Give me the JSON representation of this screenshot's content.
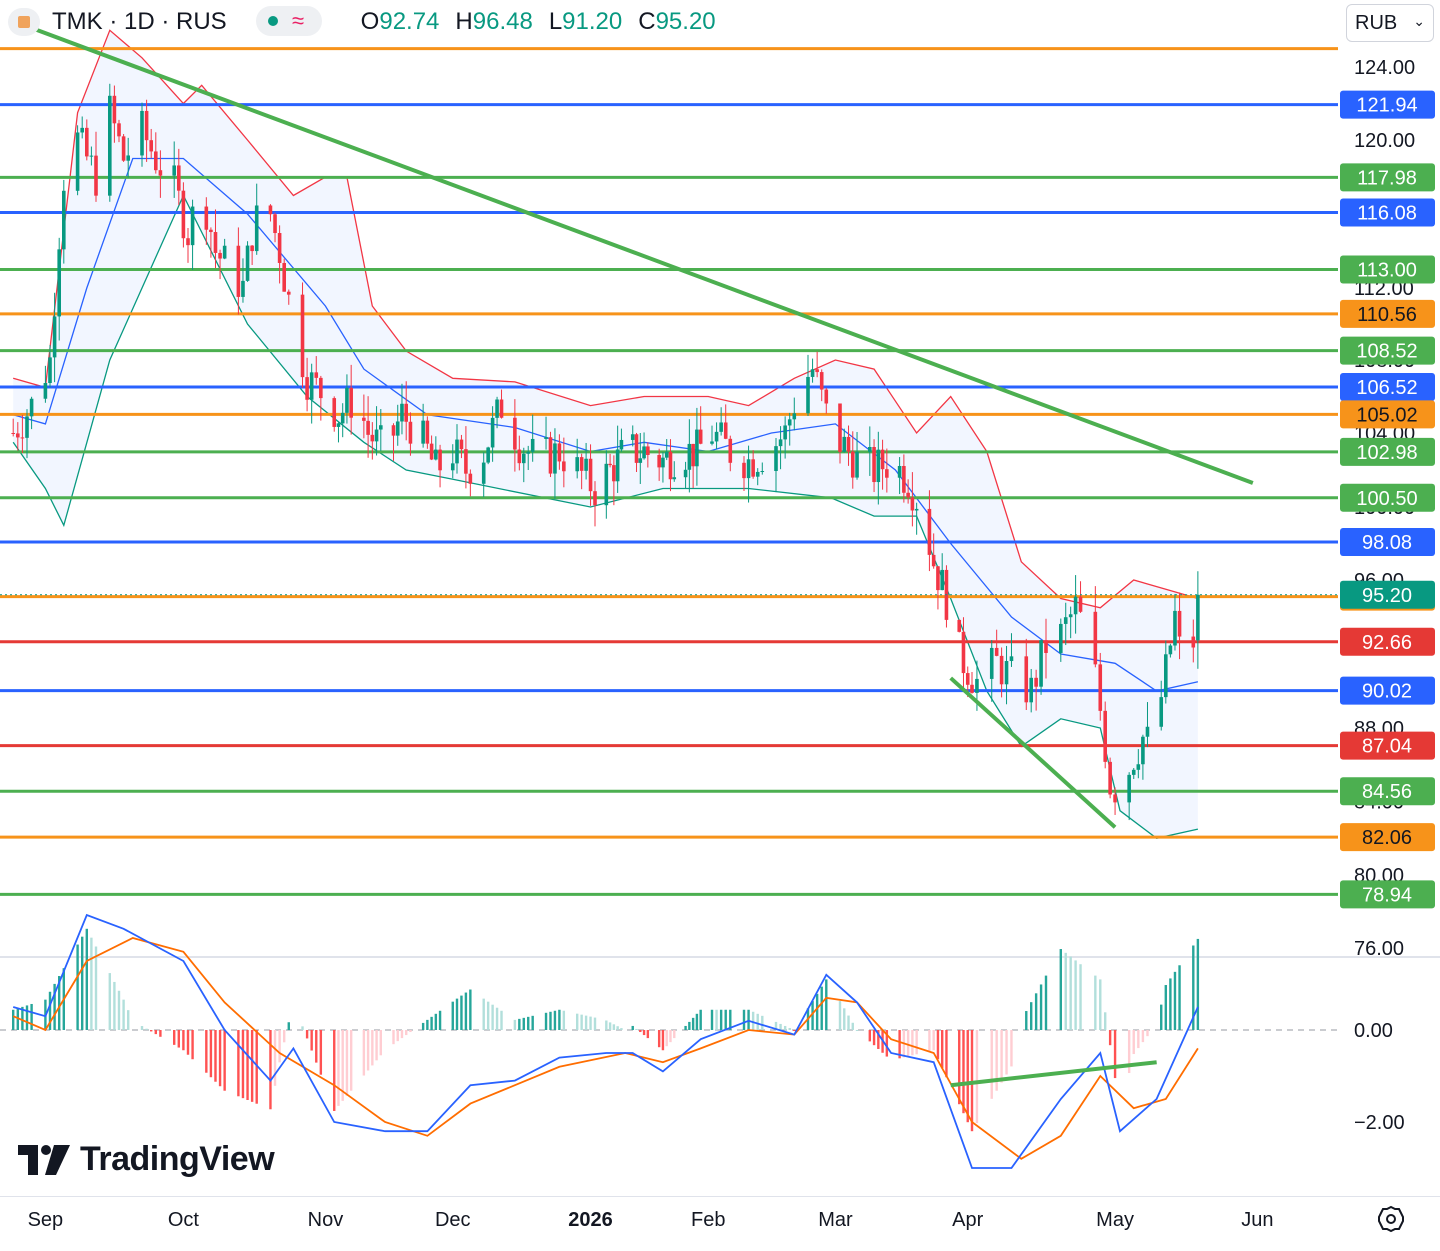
{
  "header": {
    "symbol": "TMK · 1D · RUS",
    "open_label": "O",
    "open": "92.74",
    "high_label": "H",
    "high": "96.48",
    "low_label": "L",
    "low": "91.20",
    "close_label": "C",
    "close": "95.20",
    "wave_icon": "≈",
    "currency": "RUB"
  },
  "brand": {
    "name": "TradingView"
  },
  "icons": {
    "symbol_logo": "ticker-logo-icon",
    "status": "market-status-icon",
    "settings": "settings-gear-icon",
    "dropdown": "chevron-down-icon"
  },
  "colors": {
    "up": "#089981",
    "down": "#f23645",
    "orange": "#f7931a",
    "blue": "#2962ff",
    "green": "#4caf50",
    "red": "#e53935",
    "bb_upper": "#f23645",
    "bb_basis": "#2962ff",
    "bb_lower": "#089981",
    "macd": "#2962ff",
    "signal": "#ff6d00"
  },
  "chart_data": [
    {
      "type": "candlestick",
      "symbol": "TMK",
      "interval": "1D",
      "currency": "RUB",
      "x_ticks": [
        "Sep",
        "Oct",
        "Nov",
        "Dec",
        "2026",
        "Feb",
        "Mar",
        "Apr",
        "May",
        "Jun"
      ],
      "y_ticks": [
        "124.00",
        "120.00",
        "112.00",
        "108.00",
        "104.00",
        "100.00",
        "96.00",
        "88.00",
        "84.00",
        "80.00",
        "76.00"
      ],
      "ylim": [
        75,
        127
      ],
      "last": {
        "open": 92.74,
        "high": 96.48,
        "low": 91.2,
        "close": 95.2
      },
      "close_path": [
        [
          "2025-08-25",
          104.0
        ],
        [
          "2025-08-29",
          105.5
        ],
        [
          "2025-09-02",
          108.0
        ],
        [
          "2025-09-04",
          115.0
        ],
        [
          "2025-09-06",
          121.0
        ],
        [
          "2025-09-09",
          119.5
        ],
        [
          "2025-09-12",
          118.0
        ],
        [
          "2025-09-15",
          121.5
        ],
        [
          "2025-09-18",
          119.0
        ],
        [
          "2025-09-22",
          120.5
        ],
        [
          "2025-09-25",
          119.0
        ],
        [
          "2025-09-29",
          117.5
        ],
        [
          "2025-10-02",
          115.0
        ],
        [
          "2025-10-05",
          117.5
        ],
        [
          "2025-10-08",
          114.0
        ],
        [
          "2025-10-11",
          113.0
        ],
        [
          "2025-10-14",
          112.0
        ],
        [
          "2025-10-16",
          115.0
        ],
        [
          "2025-10-19",
          117.0
        ],
        [
          "2025-10-22",
          114.0
        ],
        [
          "2025-10-25",
          110.0
        ],
        [
          "2025-10-28",
          107.0
        ],
        [
          "2025-11-01",
          106.0
        ],
        [
          "2025-11-04",
          105.0
        ],
        [
          "2025-11-08",
          106.0
        ],
        [
          "2025-11-11",
          104.0
        ],
        [
          "2025-11-15",
          103.0
        ],
        [
          "2025-11-19",
          105.0
        ],
        [
          "2025-11-23",
          104.0
        ],
        [
          "2025-11-27",
          102.0
        ],
        [
          "2025-12-01",
          103.0
        ],
        [
          "2025-12-04",
          102.0
        ],
        [
          "2025-12-08",
          103.0
        ],
        [
          "2025-12-12",
          105.5
        ],
        [
          "2025-12-16",
          103.5
        ],
        [
          "2025-12-20",
          102.5
        ],
        [
          "2025-12-25",
          103.0
        ],
        [
          "2025-12-29",
          102.0
        ],
        [
          "2026-01-02",
          101.0
        ],
        [
          "2026-01-06",
          102.0
        ],
        [
          "2026-01-10",
          103.0
        ],
        [
          "2026-01-15",
          103.0
        ],
        [
          "2026-01-20",
          102.5
        ],
        [
          "2026-01-25",
          103.0
        ],
        [
          "2026-01-29",
          103.0
        ],
        [
          "2026-02-02",
          104.0
        ],
        [
          "2026-02-06",
          103.0
        ],
        [
          "2026-02-10",
          102.5
        ],
        [
          "2026-02-14",
          103.0
        ],
        [
          "2026-02-18",
          104.0
        ],
        [
          "2026-02-21",
          106.5
        ],
        [
          "2026-02-24",
          107.5
        ],
        [
          "2026-02-27",
          105.0
        ],
        [
          "2026-03-02",
          103.5
        ],
        [
          "2026-03-06",
          102.5
        ],
        [
          "2026-03-10",
          102.0
        ],
        [
          "2026-03-14",
          102.5
        ],
        [
          "2026-03-18",
          101.5
        ],
        [
          "2026-03-21",
          100.0
        ],
        [
          "2026-03-24",
          97.0
        ],
        [
          "2026-03-27",
          95.0
        ],
        [
          "2026-03-30",
          92.0
        ],
        [
          "2026-04-03",
          90.5
        ],
        [
          "2026-04-07",
          91.5
        ],
        [
          "2026-04-11",
          90.5
        ],
        [
          "2026-04-14",
          90.0
        ],
        [
          "2026-04-17",
          92.5
        ],
        [
          "2026-04-20",
          93.0
        ],
        [
          "2026-04-23",
          94.5
        ],
        [
          "2026-04-26",
          92.5
        ],
        [
          "2026-04-28",
          89.0
        ],
        [
          "2026-04-30",
          85.0
        ],
        [
          "2026-05-02",
          84.5
        ],
        [
          "2026-05-05",
          86.5
        ],
        [
          "2026-05-07",
          87.5
        ],
        [
          "2026-05-09",
          87.0
        ],
        [
          "2026-05-12",
          91.0
        ],
        [
          "2026-05-14",
          94.0
        ],
        [
          "2026-05-16",
          90.5
        ],
        [
          "2026-05-18",
          92.7
        ],
        [
          "2026-05-19",
          95.2
        ]
      ],
      "horizontal_levels": [
        {
          "value": 125.0,
          "color": "#f7931a",
          "label": ""
        },
        {
          "value": 121.94,
          "color": "#2962ff",
          "label": "121.94"
        },
        {
          "value": 117.98,
          "color": "#4caf50",
          "label": "117.98"
        },
        {
          "value": 116.08,
          "color": "#2962ff",
          "label": "116.08"
        },
        {
          "value": 113.0,
          "color": "#4caf50",
          "label": "113.00"
        },
        {
          "value": 110.56,
          "color": "#f7931a",
          "label": "110.56"
        },
        {
          "value": 108.52,
          "color": "#4caf50",
          "label": "108.52"
        },
        {
          "value": 106.52,
          "color": "#2962ff",
          "label": "106.52"
        },
        {
          "value": 105.02,
          "color": "#f7931a",
          "label": "105.02"
        },
        {
          "value": 102.98,
          "color": "#4caf50",
          "label": "102.98"
        },
        {
          "value": 100.5,
          "color": "#4caf50",
          "label": "100.50"
        },
        {
          "value": 98.08,
          "color": "#2962ff",
          "label": "98.08"
        },
        {
          "value": 95.1,
          "color": "#f7931a",
          "label": "95.10"
        },
        {
          "value": 92.66,
          "color": "#e53935",
          "label": "92.66"
        },
        {
          "value": 90.02,
          "color": "#2962ff",
          "label": "90.02"
        },
        {
          "value": 87.04,
          "color": "#e53935",
          "label": "87.04"
        },
        {
          "value": 84.56,
          "color": "#4caf50",
          "label": "84.56"
        },
        {
          "value": 82.06,
          "color": "#f7931a",
          "label": "82.06"
        },
        {
          "value": 78.94,
          "color": "#4caf50",
          "label": "78.94"
        }
      ],
      "last_price_label": {
        "value": 95.2,
        "label": "95.20",
        "color": "#089981"
      },
      "trendlines": [
        {
          "from": [
            "2025-08-25",
            126.5
          ],
          "to": [
            "2026-05-31",
            101.3
          ],
          "color": "#4caf50"
        },
        {
          "from": [
            "2026-03-28",
            90.7
          ],
          "to": [
            "2026-05-01",
            82.6
          ],
          "color": "#4caf50"
        }
      ],
      "bollinger_bands": {
        "upper": [
          [
            "2025-08-25",
            107.0
          ],
          [
            "2025-09-01",
            106.5
          ],
          [
            "2025-09-08",
            121.5
          ],
          [
            "2025-09-15",
            126.0
          ],
          [
            "2025-09-22",
            124.5
          ],
          [
            "2025-10-01",
            122.0
          ],
          [
            "2025-10-05",
            123.0
          ],
          [
            "2025-10-15",
            120.0
          ],
          [
            "2025-10-25",
            117.0
          ],
          [
            "2025-11-01",
            118.0
          ],
          [
            "2025-11-06",
            118.0
          ],
          [
            "2025-11-12",
            111.0
          ],
          [
            "2025-11-20",
            108.5
          ],
          [
            "2025-12-01",
            107.0
          ],
          [
            "2025-12-15",
            106.8
          ],
          [
            "2026-01-01",
            105.5
          ],
          [
            "2026-01-15",
            106.0
          ],
          [
            "2026-02-01",
            106.0
          ],
          [
            "2026-02-10",
            105.5
          ],
          [
            "2026-02-20",
            107.0
          ],
          [
            "2026-03-01",
            108.0
          ],
          [
            "2026-03-10",
            107.5
          ],
          [
            "2026-03-20",
            104.0
          ],
          [
            "2026-03-28",
            106.0
          ],
          [
            "2026-04-05",
            103.0
          ],
          [
            "2026-04-12",
            97.0
          ],
          [
            "2026-04-20",
            95.0
          ],
          [
            "2026-04-28",
            94.5
          ],
          [
            "2026-05-05",
            96.0
          ],
          [
            "2026-05-12",
            95.5
          ],
          [
            "2026-05-19",
            95.0
          ]
        ],
        "basis": [
          [
            "2025-08-25",
            105.0
          ],
          [
            "2025-09-01",
            104.5
          ],
          [
            "2025-09-10",
            112.0
          ],
          [
            "2025-09-20",
            119.0
          ],
          [
            "2025-10-01",
            119.0
          ],
          [
            "2025-10-15",
            116.0
          ],
          [
            "2025-11-01",
            111.0
          ],
          [
            "2025-11-10",
            107.5
          ],
          [
            "2025-11-25",
            105.0
          ],
          [
            "2025-12-15",
            104.3
          ],
          [
            "2026-01-01",
            103.0
          ],
          [
            "2026-01-15",
            103.5
          ],
          [
            "2026-02-01",
            103.0
          ],
          [
            "2026-02-15",
            104.0
          ],
          [
            "2026-03-01",
            104.5
          ],
          [
            "2026-03-15",
            102.0
          ],
          [
            "2026-03-28",
            98.0
          ],
          [
            "2026-04-10",
            94.0
          ],
          [
            "2026-04-20",
            92.0
          ],
          [
            "2026-05-01",
            91.5
          ],
          [
            "2026-05-10",
            90.0
          ],
          [
            "2026-05-19",
            90.5
          ]
        ],
        "lower": [
          [
            "2025-08-25",
            103.5
          ],
          [
            "2025-09-01",
            101.0
          ],
          [
            "2025-09-05",
            99.0
          ],
          [
            "2025-09-15",
            108.0
          ],
          [
            "2025-10-01",
            117.0
          ],
          [
            "2025-10-15",
            110.0
          ],
          [
            "2025-10-28",
            106.0
          ],
          [
            "2025-11-10",
            103.5
          ],
          [
            "2025-11-20",
            102.0
          ],
          [
            "2025-12-01",
            101.5
          ],
          [
            "2026-01-01",
            100.0
          ],
          [
            "2026-01-20",
            101.0
          ],
          [
            "2026-02-10",
            101.0
          ],
          [
            "2026-02-28",
            100.5
          ],
          [
            "2026-03-10",
            99.5
          ],
          [
            "2026-03-20",
            99.5
          ],
          [
            "2026-03-28",
            95.0
          ],
          [
            "2026-04-05",
            90.0
          ],
          [
            "2026-04-12",
            87.0
          ],
          [
            "2026-04-20",
            88.5
          ],
          [
            "2026-04-28",
            88.0
          ],
          [
            "2026-05-02",
            83.5
          ],
          [
            "2026-05-10",
            82.0
          ],
          [
            "2026-05-19",
            82.5
          ]
        ]
      }
    },
    {
      "type": "macd",
      "y_ticks": [
        "0.00",
        "−2.00"
      ],
      "ylim": [
        -3.4,
        1.5
      ],
      "macd_line": [
        [
          "2025-08-25",
          0.5
        ],
        [
          "2025-09-01",
          0.3
        ],
        [
          "2025-09-10",
          2.5
        ],
        [
          "2025-09-18",
          2.2
        ],
        [
          "2025-10-01",
          1.5
        ],
        [
          "2025-10-10",
          0.0
        ],
        [
          "2025-10-20",
          -1.1
        ],
        [
          "2025-10-25",
          -0.4
        ],
        [
          "2025-11-03",
          -2.0
        ],
        [
          "2025-11-15",
          -2.2
        ],
        [
          "2025-11-25",
          -2.2
        ],
        [
          "2025-12-05",
          -1.2
        ],
        [
          "2025-12-15",
          -1.1
        ],
        [
          "2025-12-25",
          -0.6
        ],
        [
          "2026-01-05",
          -0.5
        ],
        [
          "2026-01-12",
          -0.5
        ],
        [
          "2026-01-20",
          -0.9
        ],
        [
          "2026-01-30",
          -0.2
        ],
        [
          "2026-02-10",
          0.2
        ],
        [
          "2026-02-20",
          -0.1
        ],
        [
          "2026-02-27",
          1.2
        ],
        [
          "2026-03-06",
          0.6
        ],
        [
          "2026-03-14",
          -0.5
        ],
        [
          "2026-03-24",
          -0.7
        ],
        [
          "2026-04-02",
          -3.0
        ],
        [
          "2026-04-10",
          -3.0
        ],
        [
          "2026-04-20",
          -1.5
        ],
        [
          "2026-04-28",
          -0.5
        ],
        [
          "2026-05-02",
          -2.2
        ],
        [
          "2026-05-10",
          -1.5
        ],
        [
          "2026-05-19",
          0.5
        ]
      ],
      "signal_line": [
        [
          "2025-08-25",
          0.3
        ],
        [
          "2025-09-01",
          0.0
        ],
        [
          "2025-09-10",
          1.5
        ],
        [
          "2025-09-20",
          2.0
        ],
        [
          "2025-10-01",
          1.7
        ],
        [
          "2025-10-10",
          0.6
        ],
        [
          "2025-10-22",
          -0.5
        ],
        [
          "2025-11-03",
          -1.2
        ],
        [
          "2025-11-15",
          -2.0
        ],
        [
          "2025-11-25",
          -2.3
        ],
        [
          "2025-12-05",
          -1.6
        ],
        [
          "2025-12-15",
          -1.2
        ],
        [
          "2025-12-25",
          -0.8
        ],
        [
          "2026-01-10",
          -0.5
        ],
        [
          "2026-01-20",
          -0.7
        ],
        [
          "2026-01-30",
          -0.4
        ],
        [
          "2026-02-10",
          0.0
        ],
        [
          "2026-02-20",
          -0.1
        ],
        [
          "2026-02-27",
          0.7
        ],
        [
          "2026-03-06",
          0.6
        ],
        [
          "2026-03-14",
          -0.2
        ],
        [
          "2026-03-24",
          -0.5
        ],
        [
          "2026-04-02",
          -2.0
        ],
        [
          "2026-04-12",
          -2.8
        ],
        [
          "2026-04-20",
          -2.3
        ],
        [
          "2026-04-28",
          -1.0
        ],
        [
          "2026-05-05",
          -1.7
        ],
        [
          "2026-05-12",
          -1.5
        ],
        [
          "2026-05-19",
          -0.4
        ]
      ],
      "divergence_line": {
        "from": [
          "2026-03-28",
          -1.2
        ],
        "to": [
          "2026-05-10",
          -0.7
        ],
        "color": "#4caf50"
      }
    }
  ]
}
